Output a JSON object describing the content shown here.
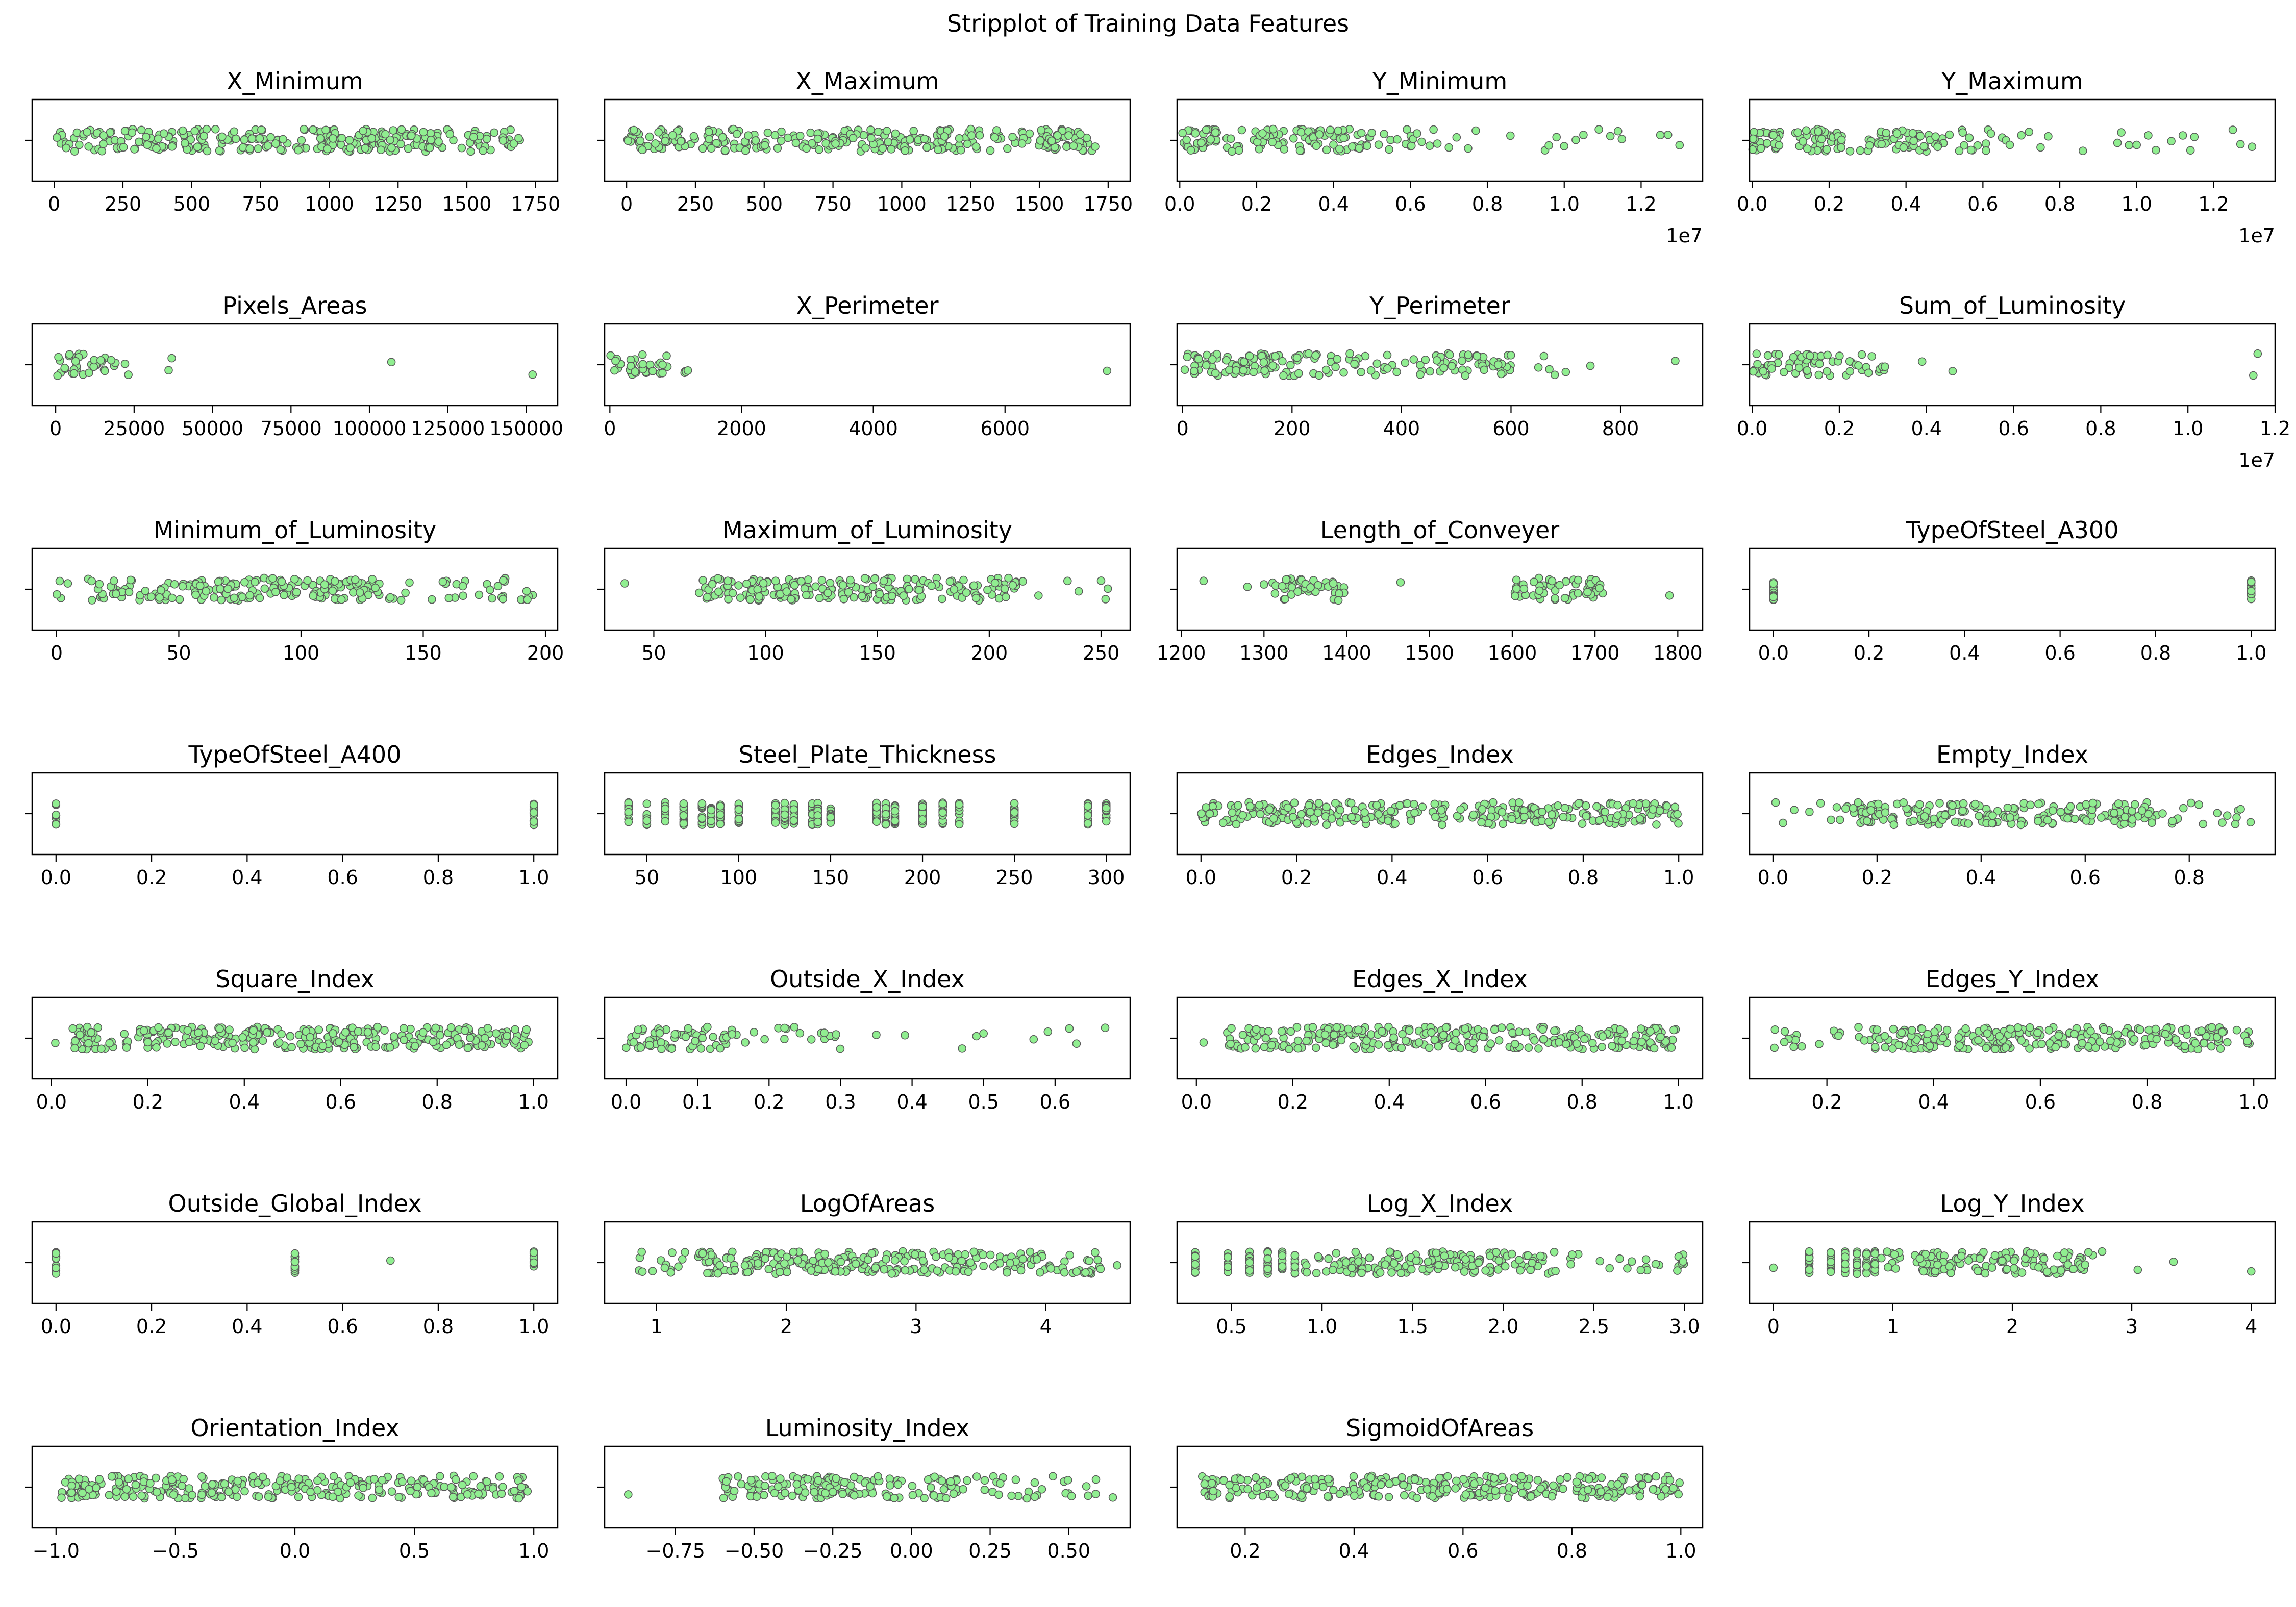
{
  "figure": {
    "title": "Stripplot of Training Data Features",
    "point_color": "#90ee90",
    "point_edge_color": "#5a5a5a"
  },
  "chart_data": [
    {
      "type": "scatter",
      "title": "X_Minimum",
      "xlim": [
        -80,
        1830
      ],
      "ticks": [
        0,
        250,
        500,
        750,
        1000,
        1250,
        1500,
        1750
      ],
      "tick_labels": [
        "0",
        "250",
        "500",
        "750",
        "1000",
        "1250",
        "1500",
        "1750"
      ],
      "offset_label": "",
      "distribution": [
        [
          0,
          1700,
          1
        ]
      ],
      "outliers": []
    },
    {
      "type": "scatter",
      "title": "X_Maximum",
      "xlim": [
        -80,
        1830
      ],
      "ticks": [
        0,
        250,
        500,
        750,
        1000,
        1250,
        1500,
        1750
      ],
      "tick_labels": [
        "0",
        "250",
        "500",
        "750",
        "1000",
        "1250",
        "1500",
        "1750"
      ],
      "offset_label": "",
      "distribution": [
        [
          0,
          1710,
          1
        ]
      ],
      "outliers": []
    },
    {
      "type": "scatter",
      "title": "Y_Minimum",
      "xlim": [
        -0.07,
        13.6
      ],
      "ticks": [
        0,
        2,
        4,
        6,
        8,
        10,
        12
      ],
      "tick_labels": [
        "0.0",
        "0.2",
        "0.4",
        "0.6",
        "0.8",
        "1.0",
        "1.2"
      ],
      "offset_label": "1e7",
      "distribution": [
        [
          0,
          5,
          1
        ],
        [
          5,
          6.3,
          0.45
        ]
      ],
      "outliers": [
        6.5,
        6.6,
        6.7,
        7,
        7.2,
        7.5,
        7.7,
        8.6,
        9.5,
        9.6,
        9.8,
        10.0,
        10.3,
        10.5,
        10.9,
        11.2,
        11.4,
        11.5,
        12.5,
        12.7,
        13.0
      ]
    },
    {
      "type": "scatter",
      "title": "Y_Maximum",
      "xlim": [
        -0.07,
        13.6
      ],
      "ticks": [
        0,
        2,
        4,
        6,
        8,
        10,
        12
      ],
      "tick_labels": [
        "0.0",
        "0.2",
        "0.4",
        "0.6",
        "0.8",
        "1.0",
        "1.2"
      ],
      "offset_label": "1e7",
      "distribution": [
        [
          0,
          5,
          1
        ],
        [
          5,
          6.3,
          0.45
        ]
      ],
      "outliers": [
        6.5,
        6.6,
        6.7,
        7,
        7.2,
        7.5,
        7.7,
        8.6,
        9.5,
        9.6,
        9.8,
        10.0,
        10.3,
        10.5,
        10.9,
        11.2,
        11.4,
        11.5,
        12.5,
        12.7,
        13.0
      ]
    },
    {
      "type": "scatter",
      "title": "Pixels_Areas",
      "xlim": [
        -7500,
        160000
      ],
      "ticks": [
        0,
        25000,
        50000,
        75000,
        100000,
        125000,
        150000
      ],
      "tick_labels": [
        "0",
        "25000",
        "50000",
        "75000",
        "100000",
        "125000",
        "150000"
      ],
      "offset_label": "",
      "distribution": [
        [
          0,
          12000,
          1
        ],
        [
          12000,
          24000,
          0.6
        ]
      ],
      "outliers": [
        36000,
        37000,
        107000,
        152000
      ]
    },
    {
      "type": "scatter",
      "title": "X_Perimeter",
      "xlim": [
        -80,
        7900
      ],
      "ticks": [
        0,
        2000,
        4000,
        6000
      ],
      "tick_labels": [
        "0",
        "2000",
        "4000",
        "6000"
      ],
      "offset_label": "",
      "distribution": [
        [
          0,
          600,
          1
        ],
        [
          600,
          1200,
          0.55
        ]
      ],
      "outliers": [
        7550
      ]
    },
    {
      "type": "scatter",
      "title": "Y_Perimeter",
      "xlim": [
        -10,
        950
      ],
      "ticks": [
        0,
        200,
        400,
        600,
        800
      ],
      "tick_labels": [
        "0",
        "200",
        "400",
        "600",
        "800"
      ],
      "offset_label": "",
      "distribution": [
        [
          0,
          240,
          1
        ],
        [
          240,
          600,
          0.65
        ]
      ],
      "outliers": [
        650,
        660,
        670,
        680,
        700,
        745,
        900
      ]
    },
    {
      "type": "scatter",
      "title": "Sum_of_Luminosity",
      "xlim": [
        -0.06,
        12.0
      ],
      "ticks": [
        0,
        2,
        4,
        6,
        8,
        10,
        12
      ],
      "tick_labels": [
        "0.0",
        "0.2",
        "0.4",
        "0.6",
        "0.8",
        "1.0",
        "1.2"
      ],
      "offset_label": "1e7",
      "distribution": [
        [
          0,
          1.6,
          1
        ],
        [
          1.6,
          3.1,
          0.55
        ]
      ],
      "outliers": [
        3.9,
        4.6,
        11.5,
        11.6
      ]
    },
    {
      "type": "scatter",
      "title": "Minimum_of_Luminosity",
      "xlim": [
        -10,
        205
      ],
      "ticks": [
        0,
        50,
        100,
        150,
        200
      ],
      "tick_labels": [
        "0",
        "50",
        "100",
        "150",
        "200"
      ],
      "offset_label": "",
      "distribution": [
        [
          0,
          15,
          0.3
        ],
        [
          15,
          130,
          1
        ],
        [
          130,
          185,
          0.4
        ],
        [
          188,
          196,
          0.5
        ]
      ],
      "outliers": []
    },
    {
      "type": "scatter",
      "title": "Maximum_of_Luminosity",
      "xlim": [
        28,
        263
      ],
      "ticks": [
        50,
        100,
        150,
        200,
        250
      ],
      "tick_labels": [
        "50",
        "100",
        "150",
        "200",
        "250"
      ],
      "offset_label": "",
      "distribution": [
        [
          70,
          215,
          1
        ]
      ],
      "outliers": [
        37,
        222,
        235,
        240,
        250,
        252,
        253
      ]
    },
    {
      "type": "scatter",
      "title": "Length_of_Conveyer",
      "xlim": [
        1195,
        1830
      ],
      "ticks": [
        1200,
        1300,
        1400,
        1500,
        1600,
        1700,
        1800
      ],
      "tick_labels": [
        "1200",
        "1300",
        "1400",
        "1500",
        "1600",
        "1700",
        "1800"
      ],
      "offset_label": "",
      "distribution": [
        [
          1310,
          1400,
          1
        ],
        [
          1600,
          1710,
          1
        ]
      ],
      "outliers": [
        1227,
        1280,
        1300,
        1465,
        1790
      ]
    },
    {
      "type": "scatter",
      "title": "TypeOfSteel_A300",
      "xlim": [
        -0.05,
        1.05
      ],
      "ticks": [
        0,
        0.2,
        0.4,
        0.6,
        0.8,
        1.0
      ],
      "tick_labels": [
        "0.0",
        "0.2",
        "0.4",
        "0.6",
        "0.8",
        "1.0"
      ],
      "offset_label": "",
      "distribution": [],
      "outliers": [],
      "stacks": [
        0,
        1
      ]
    },
    {
      "type": "scatter",
      "title": "TypeOfSteel_A400",
      "xlim": [
        -0.05,
        1.05
      ],
      "ticks": [
        0,
        0.2,
        0.4,
        0.6,
        0.8,
        1.0
      ],
      "tick_labels": [
        "0.0",
        "0.2",
        "0.4",
        "0.6",
        "0.8",
        "1.0"
      ],
      "offset_label": "",
      "distribution": [],
      "outliers": [],
      "stacks": [
        0,
        1
      ]
    },
    {
      "type": "scatter",
      "title": "Steel_Plate_Thickness",
      "xlim": [
        27,
        313
      ],
      "ticks": [
        50,
        100,
        150,
        200,
        250,
        300
      ],
      "tick_labels": [
        "50",
        "100",
        "150",
        "200",
        "250",
        "300"
      ],
      "offset_label": "",
      "distribution": [],
      "outliers": [],
      "stacks": [
        40,
        50,
        60,
        70,
        80,
        85,
        90,
        100,
        120,
        125,
        130,
        140,
        143,
        150,
        175,
        180,
        185,
        200,
        211,
        220,
        250,
        290,
        300
      ]
    },
    {
      "type": "scatter",
      "title": "Edges_Index",
      "xlim": [
        -0.05,
        1.05
      ],
      "ticks": [
        0,
        0.2,
        0.4,
        0.6,
        0.8,
        1.0
      ],
      "tick_labels": [
        "0.0",
        "0.2",
        "0.4",
        "0.6",
        "0.8",
        "1.0"
      ],
      "offset_label": "",
      "distribution": [
        [
          0,
          1,
          1
        ]
      ],
      "outliers": []
    },
    {
      "type": "scatter",
      "title": "Empty_Index",
      "xlim": [
        -0.045,
        0.965
      ],
      "ticks": [
        0,
        0.2,
        0.4,
        0.6,
        0.8
      ],
      "tick_labels": [
        "0.0",
        "0.2",
        "0.4",
        "0.6",
        "0.8"
      ],
      "offset_label": "",
      "distribution": [
        [
          0,
          0.15,
          0.2
        ],
        [
          0.15,
          0.75,
          1
        ],
        [
          0.75,
          0.92,
          0.3
        ]
      ],
      "outliers": []
    },
    {
      "type": "scatter",
      "title": "Square_Index",
      "xlim": [
        -0.04,
        1.05
      ],
      "ticks": [
        0,
        0.2,
        0.4,
        0.6,
        0.8,
        1.0
      ],
      "tick_labels": [
        "0.0",
        "0.2",
        "0.4",
        "0.6",
        "0.8",
        "1.0"
      ],
      "offset_label": "",
      "distribution": [
        [
          0.04,
          1,
          1
        ]
      ],
      "outliers": [
        0.008
      ]
    },
    {
      "type": "scatter",
      "title": "Outside_X_Index",
      "xlim": [
        -0.03,
        0.705
      ],
      "ticks": [
        0,
        0.1,
        0.2,
        0.3,
        0.4,
        0.5,
        0.6
      ],
      "tick_labels": [
        "0.0",
        "0.1",
        "0.2",
        "0.3",
        "0.4",
        "0.5",
        "0.6"
      ],
      "offset_label": "",
      "distribution": [
        [
          0,
          0.14,
          1
        ],
        [
          0.14,
          0.3,
          0.3
        ]
      ],
      "outliers": [
        0.35,
        0.39,
        0.47,
        0.49,
        0.5,
        0.57,
        0.59,
        0.62,
        0.63,
        0.67
      ]
    },
    {
      "type": "scatter",
      "title": "Edges_X_Index",
      "xlim": [
        -0.04,
        1.05
      ],
      "ticks": [
        0,
        0.2,
        0.4,
        0.6,
        0.8,
        1.0
      ],
      "tick_labels": [
        "0.0",
        "0.2",
        "0.4",
        "0.6",
        "0.8",
        "1.0"
      ],
      "offset_label": "",
      "distribution": [
        [
          0.06,
          1,
          1
        ]
      ],
      "outliers": [
        0.015
      ]
    },
    {
      "type": "scatter",
      "title": "Edges_Y_Index",
      "xlim": [
        0.055,
        1.04
      ],
      "ticks": [
        0.2,
        0.4,
        0.6,
        0.8,
        1.0
      ],
      "tick_labels": [
        "0.2",
        "0.4",
        "0.6",
        "0.8",
        "1.0"
      ],
      "offset_label": "",
      "distribution": [
        [
          0.1,
          0.27,
          0.3
        ],
        [
          0.27,
          1,
          1
        ]
      ],
      "outliers": []
    },
    {
      "type": "scatter",
      "title": "Outside_Global_Index",
      "xlim": [
        -0.05,
        1.05
      ],
      "ticks": [
        0,
        0.2,
        0.4,
        0.6,
        0.8,
        1.0
      ],
      "tick_labels": [
        "0.0",
        "0.2",
        "0.4",
        "0.6",
        "0.8",
        "1.0"
      ],
      "offset_label": "",
      "distribution": [],
      "outliers": [
        0.7
      ],
      "stacks": [
        0,
        0.5,
        1
      ]
    },
    {
      "type": "scatter",
      "title": "LogOfAreas",
      "xlim": [
        0.6,
        4.65
      ],
      "ticks": [
        1,
        2,
        3,
        4
      ],
      "tick_labels": [
        "1",
        "2",
        "3",
        "4"
      ],
      "offset_label": "",
      "distribution": [
        [
          0.78,
          1.3,
          0.35
        ],
        [
          1.3,
          4.45,
          1
        ]
      ],
      "outliers": [
        4.55
      ]
    },
    {
      "type": "scatter",
      "title": "Log_X_Index",
      "xlim": [
        0.2,
        3.1
      ],
      "ticks": [
        0.5,
        1.0,
        1.5,
        2.0,
        2.5,
        3.0
      ],
      "tick_labels": [
        "0.5",
        "1.0",
        "1.5",
        "2.0",
        "2.5",
        "3.0"
      ],
      "offset_label": "",
      "distribution": [
        [
          0.9,
          2.25,
          1
        ],
        [
          2.25,
          3.0,
          0.3
        ]
      ],
      "outliers": [],
      "stacks": [
        0.3,
        0.48,
        0.6,
        0.7,
        0.78,
        0.85
      ]
    },
    {
      "type": "scatter",
      "title": "Log_Y_Index",
      "xlim": [
        -0.2,
        4.2
      ],
      "ticks": [
        0,
        1,
        2,
        3,
        4
      ],
      "tick_labels": [
        "0",
        "1",
        "2",
        "3",
        "4"
      ],
      "offset_label": "",
      "distribution": [
        [
          0.9,
          2.6,
          1
        ],
        [
          2.6,
          2.8,
          0.3
        ]
      ],
      "outliers": [
        0,
        3.05,
        3.35,
        4.0
      ],
      "stacks": [
        0.3,
        0.48,
        0.6,
        0.7,
        0.78,
        0.85
      ]
    },
    {
      "type": "scatter",
      "title": "Orientation_Index",
      "xlim": [
        -1.1,
        1.1
      ],
      "ticks": [
        -1.0,
        -0.5,
        0,
        0.5,
        1.0
      ],
      "tick_labels": [
        "−1.0",
        "−0.5",
        "0.0",
        "0.5",
        "1.0"
      ],
      "offset_label": "",
      "distribution": [
        [
          -0.98,
          0.98,
          1
        ]
      ],
      "outliers": []
    },
    {
      "type": "scatter",
      "title": "Luminosity_Index",
      "xlim": [
        -0.975,
        0.695
      ],
      "ticks": [
        -0.75,
        -0.5,
        -0.25,
        0,
        0.25,
        0.5
      ],
      "tick_labels": [
        "−0.75",
        "−0.50",
        "−0.25",
        "0.00",
        "0.25",
        "0.50"
      ],
      "offset_label": "",
      "distribution": [
        [
          -0.6,
          0.15,
          1
        ],
        [
          0.15,
          0.6,
          0.35
        ]
      ],
      "outliers": [
        -0.9,
        0.64
      ]
    },
    {
      "type": "scatter",
      "title": "SigmoidOfAreas",
      "xlim": [
        0.075,
        1.04
      ],
      "ticks": [
        0.2,
        0.4,
        0.6,
        0.8,
        1.0
      ],
      "tick_labels": [
        "0.2",
        "0.4",
        "0.6",
        "0.8",
        "1.0"
      ],
      "offset_label": "",
      "distribution": [
        [
          0.12,
          1,
          1
        ]
      ],
      "outliers": []
    }
  ]
}
